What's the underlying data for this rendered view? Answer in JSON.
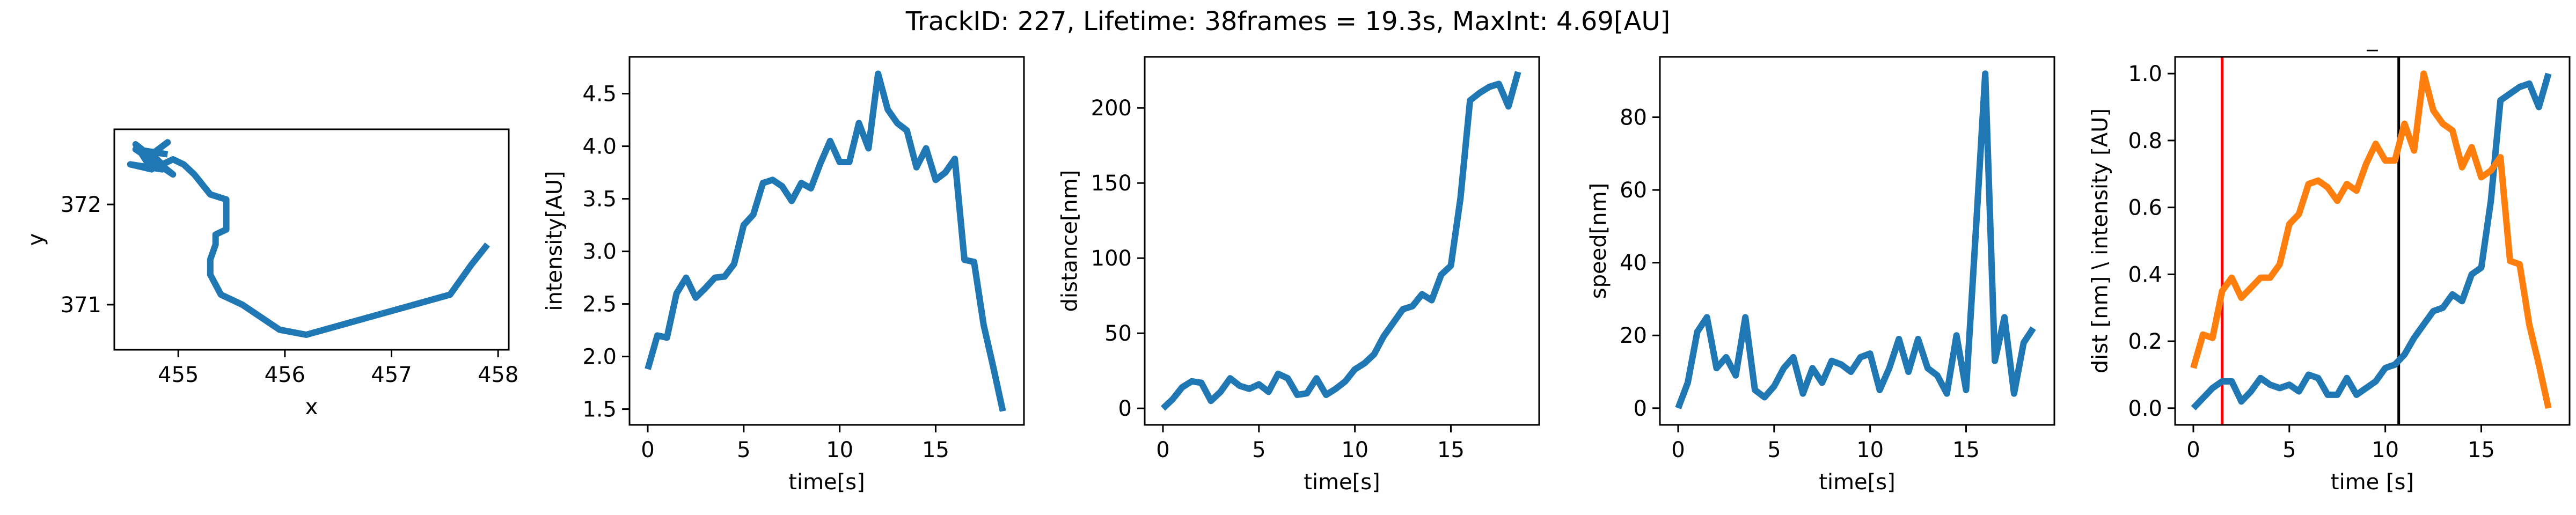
{
  "suptitle": "TrackID: 227, Lifetime: 38frames = 19.3s, MaxInt: 4.69[AU]",
  "colors": {
    "blue": "#1f77b4",
    "orange": "#ff7f0e",
    "red": "#ff0000",
    "black": "#000000",
    "axis": "#000000"
  },
  "chart_data": [
    {
      "type": "line",
      "xlabel": "x",
      "ylabel": "y",
      "xlim": [
        454.4,
        458.1
      ],
      "ylim": [
        370.55,
        372.75
      ],
      "xticks": [
        455,
        456,
        457,
        458
      ],
      "yticks": [
        371,
        372
      ],
      "grid": false,
      "series": [
        {
          "color": "#1f77b4",
          "x": [
            457.9,
            457.75,
            457.55,
            456.2,
            455.95,
            455.6,
            455.4,
            455.3,
            455.3,
            455.35,
            455.35,
            455.45,
            455.45,
            455.3,
            455.15,
            455.05,
            454.95,
            454.85,
            454.75,
            454.9,
            454.75,
            454.6,
            454.95,
            454.6,
            454.75,
            454.55,
            454.85,
            454.8,
            454.6,
            454.9
          ],
          "y": [
            371.6,
            371.4,
            371.1,
            370.7,
            370.75,
            371.0,
            371.1,
            371.3,
            371.45,
            371.6,
            371.7,
            371.75,
            372.05,
            372.1,
            372.3,
            372.4,
            372.45,
            372.4,
            372.5,
            372.62,
            372.5,
            372.55,
            372.3,
            372.6,
            372.35,
            372.4,
            372.35,
            372.45,
            372.55,
            372.5
          ]
        }
      ]
    },
    {
      "type": "line",
      "xlabel": "time[s]",
      "ylabel": "intensity[AU]",
      "xlim": [
        -0.95,
        19.6
      ],
      "ylim": [
        1.35,
        4.85
      ],
      "xticks": [
        0,
        5,
        10,
        15
      ],
      "yticks": [
        1.5,
        2.0,
        2.5,
        3.0,
        3.5,
        4.0,
        4.5
      ],
      "yticklabels": [
        "1.5",
        "2.0",
        "2.5",
        "3.0",
        "3.5",
        "4.0",
        "4.5"
      ],
      "grid": false,
      "series": [
        {
          "color": "#1f77b4",
          "x": [
            0,
            0.5,
            1.0,
            1.5,
            2.0,
            2.5,
            3.0,
            3.5,
            4.0,
            4.5,
            5.0,
            5.5,
            6.0,
            6.5,
            7.0,
            7.5,
            8.0,
            8.5,
            9.0,
            9.5,
            10.0,
            10.5,
            11.0,
            11.5,
            12.0,
            12.5,
            13.0,
            13.5,
            14.0,
            14.5,
            15.0,
            15.5,
            16.0,
            16.5,
            17.0,
            17.5,
            18.0,
            18.5
          ],
          "y": [
            1.88,
            2.2,
            2.18,
            2.6,
            2.75,
            2.56,
            2.65,
            2.75,
            2.76,
            2.88,
            3.25,
            3.35,
            3.65,
            3.68,
            3.62,
            3.48,
            3.65,
            3.6,
            3.84,
            4.05,
            3.85,
            3.85,
            4.22,
            3.98,
            4.69,
            4.35,
            4.22,
            4.15,
            3.8,
            3.98,
            3.68,
            3.75,
            3.88,
            2.92,
            2.9,
            2.3,
            1.9,
            1.48
          ]
        }
      ]
    },
    {
      "type": "line",
      "xlabel": "time[s]",
      "ylabel": "distance[nm]",
      "xlim": [
        -0.95,
        19.6
      ],
      "ylim": [
        -11,
        234
      ],
      "xticks": [
        0,
        5,
        10,
        15
      ],
      "yticks": [
        0,
        50,
        100,
        150,
        200
      ],
      "grid": false,
      "series": [
        {
          "color": "#1f77b4",
          "x": [
            0,
            0.5,
            1.0,
            1.5,
            2.0,
            2.5,
            3.0,
            3.5,
            4.0,
            4.5,
            5.0,
            5.5,
            6.0,
            6.5,
            7.0,
            7.5,
            8.0,
            8.5,
            9.0,
            9.5,
            10.0,
            10.5,
            11.0,
            11.5,
            12.0,
            12.5,
            13.0,
            13.5,
            14.0,
            14.5,
            15.0,
            15.5,
            16.0,
            16.5,
            17.0,
            17.5,
            18.0,
            18.5
          ],
          "y": [
            0,
            6,
            14,
            18,
            17,
            5,
            11,
            20,
            15,
            13,
            16,
            11,
            23,
            20,
            9,
            10,
            20,
            9,
            13,
            18,
            26,
            30,
            36,
            48,
            57,
            66,
            68,
            76,
            72,
            89,
            95,
            140,
            205,
            210,
            214,
            216,
            201,
            224
          ]
        }
      ]
    },
    {
      "type": "line",
      "xlabel": "time[s]",
      "ylabel": "speed[nm]",
      "xlim": [
        -0.95,
        19.6
      ],
      "ylim": [
        -4.6,
        96.6
      ],
      "xticks": [
        0,
        5,
        10,
        15
      ],
      "yticks": [
        0,
        20,
        40,
        60,
        80
      ],
      "grid": false,
      "series": [
        {
          "color": "#1f77b4",
          "x": [
            0,
            0.5,
            1.0,
            1.5,
            2.0,
            2.5,
            3.0,
            3.5,
            4.0,
            4.5,
            5.0,
            5.5,
            6.0,
            6.5,
            7.0,
            7.5,
            8.0,
            8.5,
            9.0,
            9.5,
            10.0,
            10.5,
            11.0,
            11.5,
            12.0,
            12.5,
            13.0,
            13.5,
            14.0,
            14.5,
            15.0,
            15.5,
            16.0,
            16.5,
            17.0,
            17.5,
            18.0,
            18.5
          ],
          "y": [
            0,
            7,
            21,
            25,
            11,
            14,
            9,
            25,
            5,
            3,
            6,
            11,
            14,
            4,
            11,
            7,
            13,
            12,
            10,
            14,
            15,
            5,
            11,
            19,
            10,
            19,
            11,
            9,
            4,
            20,
            5,
            48,
            92,
            13,
            25,
            4,
            18,
            22
          ]
        }
      ]
    },
    {
      "type": "line",
      "title": "_",
      "xlabel": "time [s]",
      "ylabel": "dist [nm] \\ intensity [AU]",
      "xlim": [
        -0.95,
        19.6
      ],
      "ylim": [
        -0.05,
        1.05
      ],
      "xticks": [
        0,
        5,
        10,
        15
      ],
      "yticks": [
        0.0,
        0.2,
        0.4,
        0.6,
        0.8,
        1.0
      ],
      "yticklabels": [
        "0.0",
        "0.2",
        "0.4",
        "0.6",
        "0.8",
        "1.0"
      ],
      "grid": false,
      "vlines": [
        {
          "x": 1.5,
          "color": "#ff0000"
        },
        {
          "x": 10.7,
          "color": "#000000"
        }
      ],
      "series": [
        {
          "color": "#1f77b4",
          "x": [
            0,
            0.5,
            1.0,
            1.5,
            2.0,
            2.5,
            3.0,
            3.5,
            4.0,
            4.5,
            5.0,
            5.5,
            6.0,
            6.5,
            7.0,
            7.5,
            8.0,
            8.5,
            9.0,
            9.5,
            10.0,
            10.5,
            11.0,
            11.5,
            12.0,
            12.5,
            13.0,
            13.5,
            14.0,
            14.5,
            15.0,
            15.5,
            16.0,
            16.5,
            17.0,
            17.5,
            18.0,
            18.5
          ],
          "y": [
            0.0,
            0.03,
            0.06,
            0.08,
            0.08,
            0.02,
            0.05,
            0.09,
            0.07,
            0.06,
            0.07,
            0.05,
            0.1,
            0.09,
            0.04,
            0.04,
            0.09,
            0.04,
            0.06,
            0.08,
            0.12,
            0.13,
            0.16,
            0.21,
            0.25,
            0.29,
            0.3,
            0.34,
            0.32,
            0.4,
            0.42,
            0.62,
            0.92,
            0.94,
            0.96,
            0.97,
            0.9,
            1.0
          ]
        },
        {
          "color": "#ff7f0e",
          "x": [
            0,
            0.5,
            1.0,
            1.5,
            2.0,
            2.5,
            3.0,
            3.5,
            4.0,
            4.5,
            5.0,
            5.5,
            6.0,
            6.5,
            7.0,
            7.5,
            8.0,
            8.5,
            9.0,
            9.5,
            10.0,
            10.5,
            11.0,
            11.5,
            12.0,
            12.5,
            13.0,
            13.5,
            14.0,
            14.5,
            15.0,
            15.5,
            16.0,
            16.5,
            17.0,
            17.5,
            18.0,
            18.5
          ],
          "y": [
            0.12,
            0.22,
            0.21,
            0.35,
            0.39,
            0.33,
            0.36,
            0.39,
            0.39,
            0.43,
            0.55,
            0.58,
            0.67,
            0.68,
            0.66,
            0.62,
            0.67,
            0.65,
            0.73,
            0.79,
            0.74,
            0.74,
            0.85,
            0.77,
            1.0,
            0.89,
            0.85,
            0.83,
            0.72,
            0.78,
            0.69,
            0.71,
            0.75,
            0.44,
            0.43,
            0.25,
            0.13,
            0.0
          ]
        }
      ]
    }
  ]
}
